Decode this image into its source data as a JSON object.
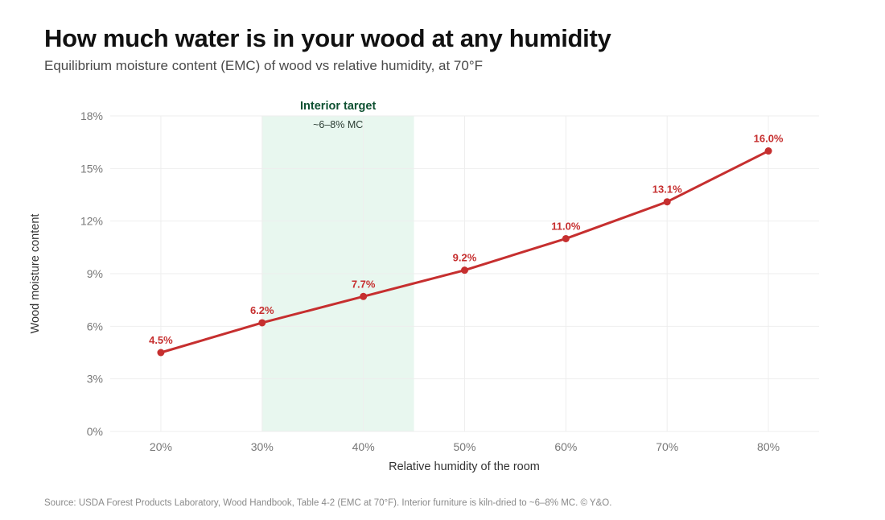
{
  "header": {
    "title": "How much water is in your wood at any humidity",
    "subtitle": "Equilibrium moisture content (EMC) of wood vs relative humidity, at 70°F"
  },
  "footer": {
    "source": "Source: USDA Forest Products Laboratory, Wood Handbook, Table 4-2 (EMC at 70°F). Interior furniture is kiln-dried to ~6–8% MC. © Y&O."
  },
  "colors": {
    "line": "#c62f2f",
    "band": "#e8f7ef",
    "band_title": "#0f5132",
    "grid": "#eeeeee",
    "tick": "#777777"
  },
  "chart_data": {
    "type": "line",
    "xlabel": "Relative humidity of the room",
    "ylabel": "Wood moisture content",
    "x": [
      20,
      30,
      40,
      50,
      60,
      70,
      80
    ],
    "x_tick_labels": [
      "20%",
      "30%",
      "40%",
      "50%",
      "60%",
      "70%",
      "80%"
    ],
    "xlim": [
      15,
      85
    ],
    "y_ticks": [
      0,
      3,
      6,
      9,
      12,
      15,
      18
    ],
    "y_tick_labels": [
      "0%",
      "3%",
      "6%",
      "9%",
      "12%",
      "15%",
      "18%"
    ],
    "ylim": [
      0,
      18
    ],
    "grid": true,
    "series": [
      {
        "values": [
          4.5,
          6.2,
          7.7,
          9.2,
          11.0,
          13.1,
          16.0
        ],
        "labels": [
          "4.5%",
          "6.2%",
          "7.7%",
          "9.2%",
          "11.0%",
          "13.1%",
          "16.0%"
        ]
      }
    ],
    "annotations": [
      {
        "type": "band",
        "x_from": 30,
        "x_to": 45,
        "title": "Interior target",
        "subtitle": "~6–8% MC"
      }
    ]
  }
}
